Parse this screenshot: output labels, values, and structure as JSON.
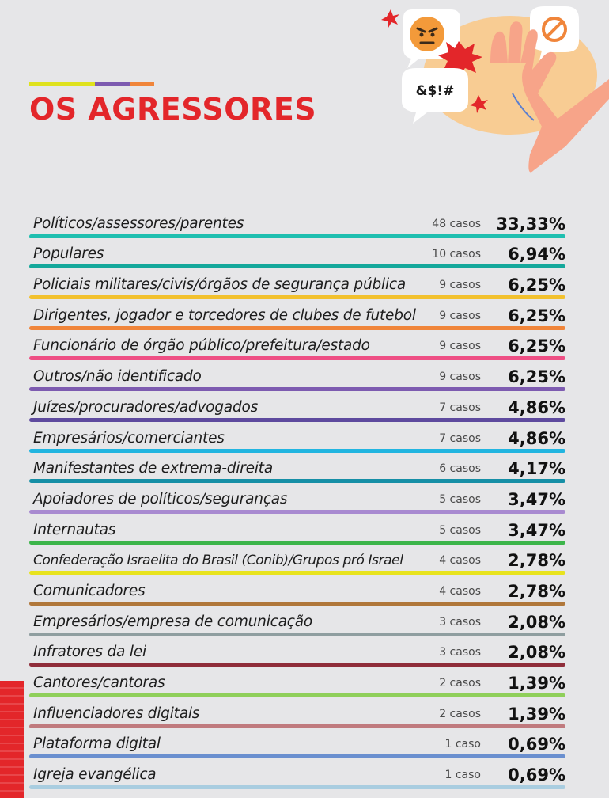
{
  "title": "OS AGRESSORES",
  "accent_colors": [
    "#dfe21d",
    "#7d5bb0",
    "#f0853a"
  ],
  "illustration": {
    "speech_text": "&$!#",
    "icons": [
      "angry-face-icon",
      "prohibited-icon",
      "burst-icon",
      "raised-hand-icon"
    ]
  },
  "chart_data": {
    "type": "table",
    "title": "OS AGRESSORES",
    "rows": [
      {
        "label": "Políticos/assessores/parentes",
        "cases": "48 casos",
        "count": 48,
        "percent_text": "33,33%",
        "percent": 33.33,
        "color": "#1fbfb0"
      },
      {
        "label": "Populares",
        "cases": "10 casos",
        "count": 10,
        "percent_text": "6,94%",
        "percent": 6.94,
        "color": "#14a89b"
      },
      {
        "label": "Policiais militares/civis/órgãos de segurança pública",
        "cases": "9 casos",
        "count": 9,
        "percent_text": "6,25%",
        "percent": 6.25,
        "color": "#f2c12e"
      },
      {
        "label": "Dirigentes, jogador e torcedores de clubes de futebol",
        "cases": "9 casos",
        "count": 9,
        "percent_text": "6,25%",
        "percent": 6.25,
        "color": "#f0853a"
      },
      {
        "label": "Funcionário de órgão público/prefeitura/estado",
        "cases": "9 casos",
        "count": 9,
        "percent_text": "6,25%",
        "percent": 6.25,
        "color": "#ee4f84"
      },
      {
        "label": "Outros/não identificado",
        "cases": "9 casos",
        "count": 9,
        "percent_text": "6,25%",
        "percent": 6.25,
        "color": "#7d5bb0"
      },
      {
        "label": "Juízes/procuradores/advogados",
        "cases": "7 casos",
        "count": 7,
        "percent_text": "4,86%",
        "percent": 4.86,
        "color": "#5e4a9e"
      },
      {
        "label": "Empresários/comerciantes",
        "cases": "7 casos",
        "count": 7,
        "percent_text": "4,86%",
        "percent": 4.86,
        "color": "#22b5e0"
      },
      {
        "label": "Manifestantes de extrema-direita",
        "cases": "6 casos",
        "count": 6,
        "percent_text": "4,17%",
        "percent": 4.17,
        "color": "#168fa6"
      },
      {
        "label": "Apoiadores de políticos/seguranças",
        "cases": "5 casos",
        "count": 5,
        "percent_text": "3,47%",
        "percent": 3.47,
        "color": "#a88ad0"
      },
      {
        "label": "Internautas",
        "cases": "5 casos",
        "count": 5,
        "percent_text": "3,47%",
        "percent": 3.47,
        "color": "#3cb54a"
      },
      {
        "label": "Confederação Israelita do Brasil (Conib)/Grupos pró Israel",
        "cases": "4 casos",
        "count": 4,
        "percent_text": "2,78%",
        "percent": 2.78,
        "color": "#e8e31e"
      },
      {
        "label": "Comunicadores",
        "cases": "4 casos",
        "count": 4,
        "percent_text": "2,78%",
        "percent": 2.78,
        "color": "#b0773a"
      },
      {
        "label": "Empresários/empresa de comunicação",
        "cases": "3 casos",
        "count": 3,
        "percent_text": "2,08%",
        "percent": 2.08,
        "color": "#8f9ea0"
      },
      {
        "label": "Infratores da lei",
        "cases": "3 casos",
        "count": 3,
        "percent_text": "2,08%",
        "percent": 2.08,
        "color": "#8f2d3a"
      },
      {
        "label": "Cantores/cantoras",
        "cases": "2 casos",
        "count": 2,
        "percent_text": "1,39%",
        "percent": 1.39,
        "color": "#8fcf5a"
      },
      {
        "label": "Influenciadores digitais",
        "cases": "2 casos",
        "count": 2,
        "percent_text": "1,39%",
        "percent": 1.39,
        "color": "#c07a7e"
      },
      {
        "label": "Plataforma digital",
        "cases": "1 caso",
        "count": 1,
        "percent_text": "0,69%",
        "percent": 0.69,
        "color": "#6a8fcf"
      },
      {
        "label": "Igreja evangélica",
        "cases": "1 caso",
        "count": 1,
        "percent_text": "0,69%",
        "percent": 0.69,
        "color": "#a9cde0"
      }
    ]
  }
}
